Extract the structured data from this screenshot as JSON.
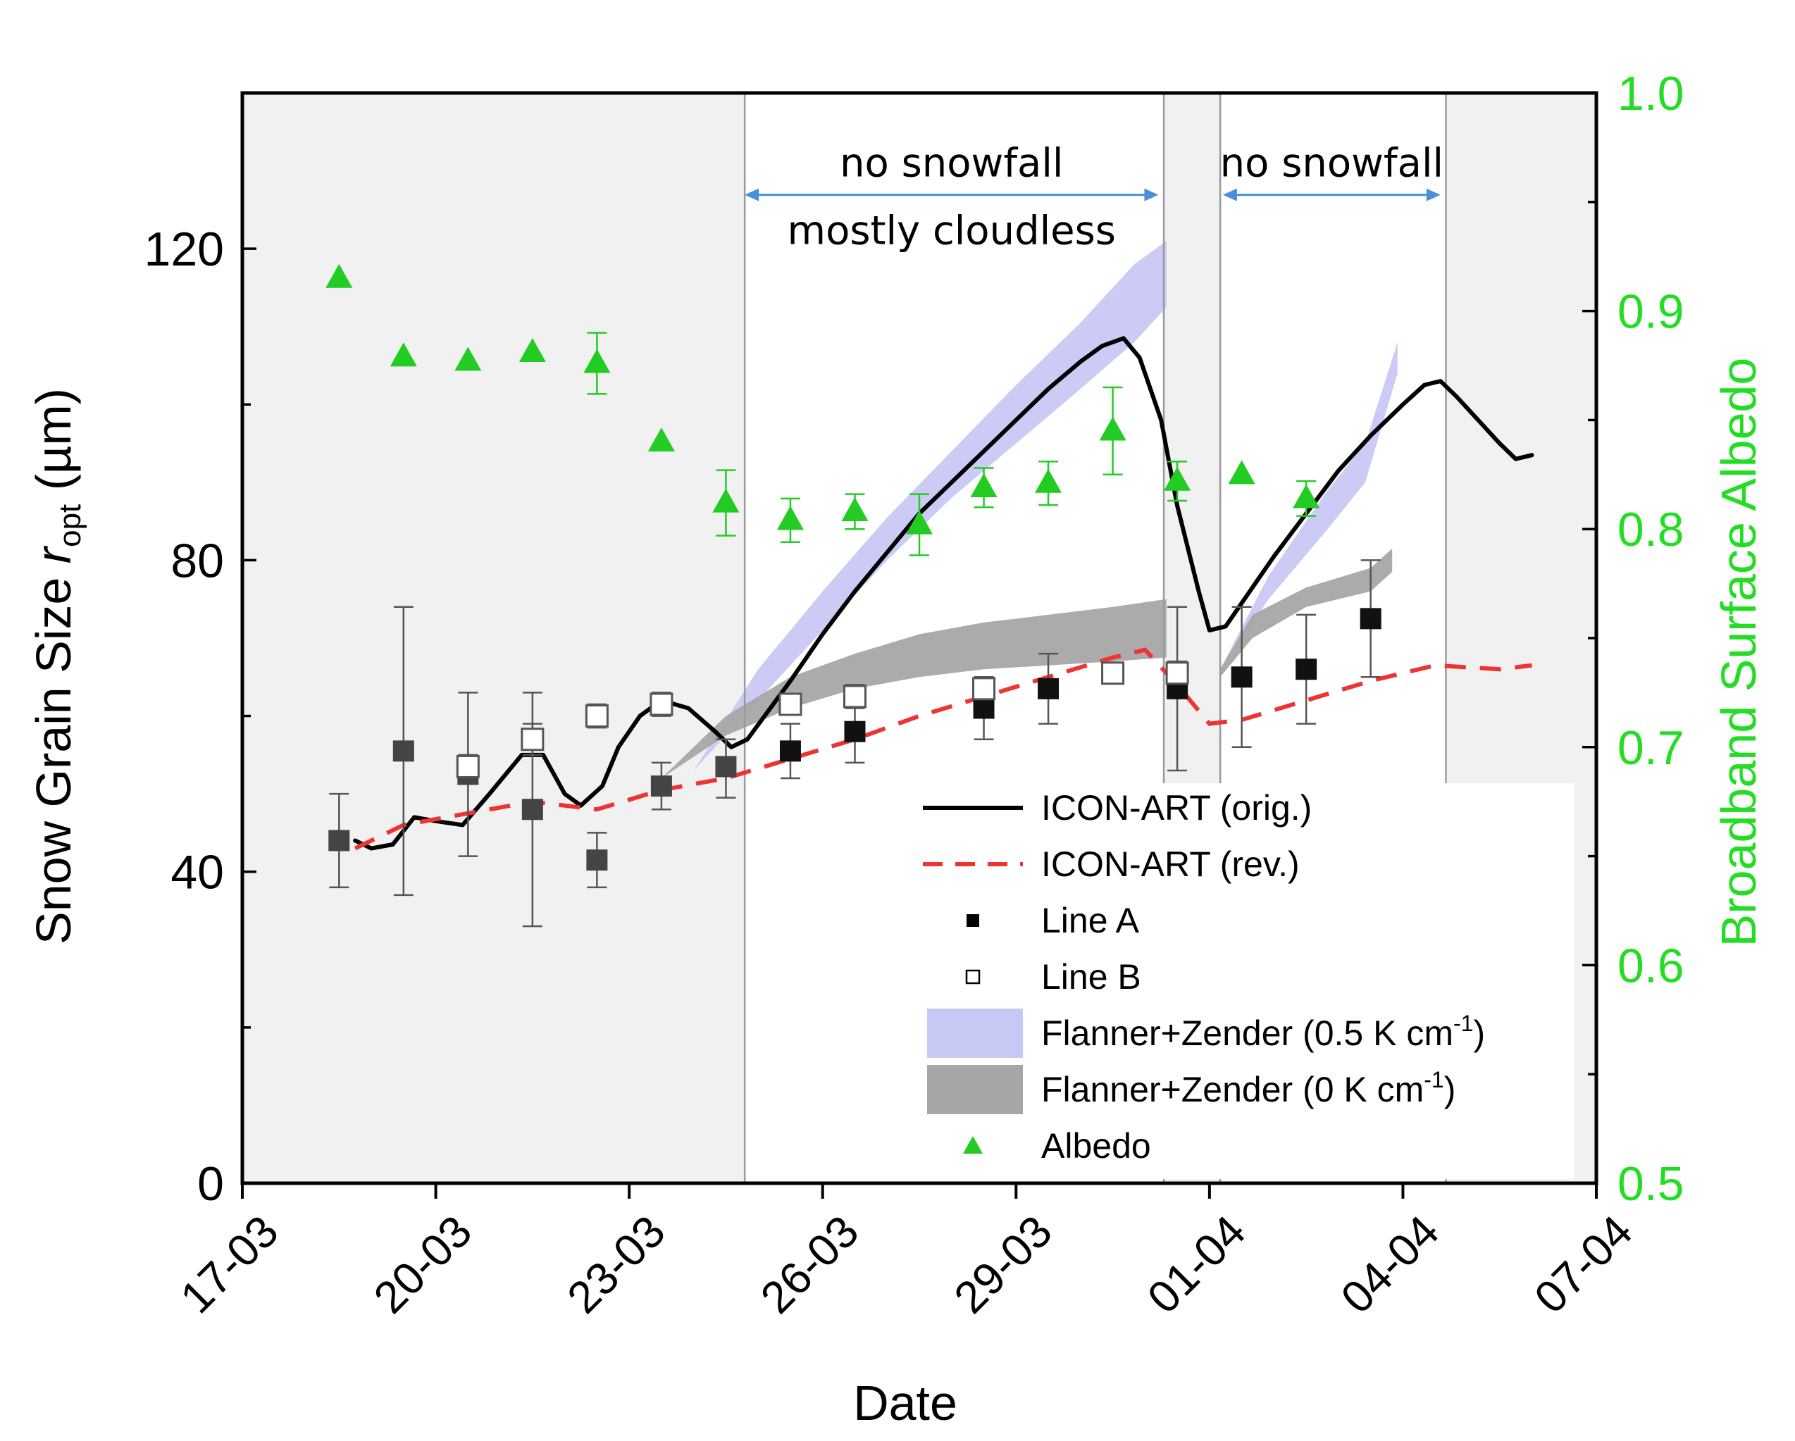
{
  "chart_data": {
    "type": "scatter",
    "xlabel": "Date",
    "ylabel": {
      "main": "Snow Grain Size ",
      "italic": "r",
      "sub": "opt",
      "unit": " (µm)"
    },
    "ylabel_right": "Broadband Surface Albedo",
    "x_range": [
      "2017-03-17",
      "2017-04-07"
    ],
    "y_left_range": [
      0,
      140
    ],
    "y_right_range": [
      0.5,
      1.0
    ],
    "x_ticks": [
      {
        "date": "2017-03-17",
        "label": "17-03"
      },
      {
        "date": "2017-03-20",
        "label": "20-03"
      },
      {
        "date": "2017-03-23",
        "label": "23-03"
      },
      {
        "date": "2017-03-26",
        "label": "26-03"
      },
      {
        "date": "2017-03-29",
        "label": "29-03"
      },
      {
        "date": "2017-04-01",
        "label": "01-04"
      },
      {
        "date": "2017-04-04",
        "label": "04-04"
      },
      {
        "date": "2017-04-07",
        "label": "07-04"
      }
    ],
    "y_left_ticks": [
      {
        "value": 0,
        "label": "0"
      },
      {
        "value": 40,
        "label": "40"
      },
      {
        "value": 80,
        "label": "80"
      },
      {
        "value": 120,
        "label": "120"
      }
    ],
    "y_right_ticks": [
      {
        "value": 0.5,
        "label": "0.5"
      },
      {
        "value": 0.6,
        "label": "0.6"
      },
      {
        "value": 0.7,
        "label": "0.7"
      },
      {
        "value": 0.8,
        "label": "0.8"
      },
      {
        "value": 0.9,
        "label": "0.9"
      },
      {
        "value": 1.0,
        "label": "1.0"
      }
    ],
    "shaded_periods": [
      {
        "start": "2017-03-17T00:00",
        "end": "2017-03-24T19:00"
      },
      {
        "start": "2017-03-31T07:00",
        "end": "2017-04-01T04:00"
      },
      {
        "start": "2017-04-04T16:00",
        "end": "2017-04-07T00:00"
      }
    ],
    "period_lines": [
      "2017-03-24T19:00",
      "2017-03-31T07:00",
      "2017-04-01T04:00",
      "2017-04-04T16:00"
    ],
    "annotations": [
      {
        "lines": [
          "no snowfall",
          "mostly cloudless"
        ],
        "start": "2017-03-24T19:00",
        "end": "2017-03-31T05:00",
        "y": 128
      },
      {
        "lines": [
          "no snowfall"
        ],
        "start": "2017-04-01T05:00",
        "end": "2017-04-04T14:00",
        "y": 128
      }
    ],
    "legend": [
      {
        "label": "ICON-ART (orig.)",
        "kind": "line",
        "color": "#000000"
      },
      {
        "label": "ICON-ART (rev.)",
        "kind": "dash",
        "color": "#ee3333"
      },
      {
        "label": "Line A",
        "kind": "square-filled",
        "color": "#000000"
      },
      {
        "label": "Line B",
        "kind": "square-open",
        "color": "#000000"
      },
      {
        "label": "Flanner+Zender (0.5 K cm",
        "sup": "-1",
        "tail": ")",
        "kind": "band",
        "color": "#c8c8f4"
      },
      {
        "label": "Flanner+Zender (0 K cm",
        "sup": "-1",
        "tail": ")",
        "kind": "band",
        "color": "#a6a6a6"
      },
      {
        "label": "Albedo",
        "kind": "triangle",
        "color": "#22cc22"
      }
    ],
    "series": [
      {
        "name": "ICON-ART (orig.)",
        "color": "#000000",
        "points": [
          [
            "2017-03-18T18:00",
            44
          ],
          [
            "2017-03-19T00:00",
            43
          ],
          [
            "2017-03-19T08:00",
            43.5
          ],
          [
            "2017-03-19T16:00",
            47
          ],
          [
            "2017-03-20T00:00",
            46.5
          ],
          [
            "2017-03-20T10:00",
            46
          ],
          [
            "2017-03-20T20:00",
            50
          ],
          [
            "2017-03-21T08:00",
            55
          ],
          [
            "2017-03-21T16:00",
            55
          ],
          [
            "2017-03-22T00:00",
            50
          ],
          [
            "2017-03-22T06:00",
            48.5
          ],
          [
            "2017-03-22T14:00",
            51
          ],
          [
            "2017-03-22T20:00",
            56
          ],
          [
            "2017-03-23T04:00",
            60
          ],
          [
            "2017-03-23T12:00",
            62
          ],
          [
            "2017-03-23T22:00",
            61
          ],
          [
            "2017-03-24T08:00",
            58
          ],
          [
            "2017-03-24T14:00",
            56
          ],
          [
            "2017-03-24T20:00",
            57
          ],
          [
            "2017-03-25T12:00",
            64.5
          ],
          [
            "2017-03-26T00:00",
            70.5
          ],
          [
            "2017-03-26T12:00",
            76
          ],
          [
            "2017-03-27T00:00",
            81
          ],
          [
            "2017-03-27T12:00",
            86
          ],
          [
            "2017-03-28T00:00",
            90
          ],
          [
            "2017-03-28T12:00",
            94
          ],
          [
            "2017-03-29T00:00",
            98
          ],
          [
            "2017-03-29T12:00",
            102
          ],
          [
            "2017-03-30T00:00",
            105.5
          ],
          [
            "2017-03-30T08:00",
            107.5
          ],
          [
            "2017-03-30T16:00",
            108.5
          ],
          [
            "2017-03-30T22:00",
            106
          ],
          [
            "2017-03-31T06:00",
            98
          ],
          [
            "2017-03-31T12:00",
            87
          ],
          [
            "2017-03-31T20:00",
            76
          ],
          [
            "2017-04-01T00:00",
            71
          ],
          [
            "2017-04-01T06:00",
            71.5
          ],
          [
            "2017-04-01T12:00",
            74.5
          ],
          [
            "2017-04-02T00:00",
            80.5
          ],
          [
            "2017-04-02T12:00",
            86
          ],
          [
            "2017-04-03T00:00",
            91.5
          ],
          [
            "2017-04-03T12:00",
            96
          ],
          [
            "2017-04-04T00:00",
            100
          ],
          [
            "2017-04-04T08:00",
            102.5
          ],
          [
            "2017-04-04T14:00",
            103
          ],
          [
            "2017-04-04T20:00",
            101
          ],
          [
            "2017-04-05T04:00",
            98
          ],
          [
            "2017-04-05T12:00",
            95
          ],
          [
            "2017-04-05T18:00",
            93
          ],
          [
            "2017-04-06T00:00",
            93.5
          ]
        ]
      },
      {
        "name": "ICON-ART (rev.)",
        "color": "#ee3333",
        "points": [
          [
            "2017-03-18T18:00",
            43
          ],
          [
            "2017-03-19T12:00",
            46
          ],
          [
            "2017-03-20T12:00",
            47.5
          ],
          [
            "2017-03-21T12:00",
            49
          ],
          [
            "2017-03-22T12:00",
            48
          ],
          [
            "2017-03-23T12:00",
            50.5
          ],
          [
            "2017-03-24T12:00",
            52
          ],
          [
            "2017-03-25T12:00",
            54.5
          ],
          [
            "2017-03-26T12:00",
            57
          ],
          [
            "2017-03-27T12:00",
            60
          ],
          [
            "2017-03-28T12:00",
            62.5
          ],
          [
            "2017-03-29T12:00",
            65
          ],
          [
            "2017-03-30T12:00",
            67.5
          ],
          [
            "2017-03-31T00:00",
            68.5
          ],
          [
            "2017-03-31T12:00",
            64
          ],
          [
            "2017-04-01T00:00",
            59
          ],
          [
            "2017-04-01T12:00",
            59.5
          ],
          [
            "2017-04-02T12:00",
            62
          ],
          [
            "2017-04-03T12:00",
            64.5
          ],
          [
            "2017-04-04T12:00",
            66.5
          ],
          [
            "2017-04-05T12:00",
            66
          ],
          [
            "2017-04-06T00:00",
            66.5
          ]
        ]
      },
      {
        "name": "Line A",
        "color": "#000000",
        "points": [
          {
            "x": "2017-03-18T12:00",
            "y": 44,
            "err": [
              38,
              50
            ]
          },
          {
            "x": "2017-03-19T12:00",
            "y": 55.5,
            "err": [
              37,
              74
            ]
          },
          {
            "x": "2017-03-20T12:00",
            "y": 52.5,
            "err": [
              42,
              63
            ]
          },
          {
            "x": "2017-03-21T12:00",
            "y": 48,
            "err": [
              33,
              63
            ]
          },
          {
            "x": "2017-03-22T12:00",
            "y": 41.5,
            "err": [
              38,
              45
            ]
          },
          {
            "x": "2017-03-23T12:00",
            "y": 51,
            "err": [
              48,
              54
            ]
          },
          {
            "x": "2017-03-24T12:00",
            "y": 53.5,
            "err": [
              49.5,
              57
            ]
          },
          {
            "x": "2017-03-25T12:00",
            "y": 55.5,
            "err": [
              52,
              59
            ]
          },
          {
            "x": "2017-03-26T12:00",
            "y": 58,
            "err": [
              54,
              62
            ]
          },
          {
            "x": "2017-03-28T12:00",
            "y": 61,
            "err": [
              57,
              65
            ]
          },
          {
            "x": "2017-03-29T12:00",
            "y": 63.5,
            "err": [
              59,
              68
            ]
          },
          {
            "x": "2017-03-31T12:00",
            "y": 63.5,
            "err": [
              53,
              74
            ]
          },
          {
            "x": "2017-04-01T12:00",
            "y": 65,
            "err": [
              56,
              74
            ]
          },
          {
            "x": "2017-04-02T12:00",
            "y": 66,
            "err": [
              59,
              73
            ]
          },
          {
            "x": "2017-04-03T12:00",
            "y": 72.5,
            "err": [
              65,
              80
            ]
          }
        ]
      },
      {
        "name": "Line B",
        "color": "#000000",
        "points": [
          {
            "x": "2017-03-20T12:00",
            "y": 53.5,
            "err": [
              52,
              55
            ]
          },
          {
            "x": "2017-03-21T12:00",
            "y": 57,
            "err": [
              55,
              59
            ]
          },
          {
            "x": "2017-03-22T12:00",
            "y": 60,
            "err": [
              58.5,
              61.5
            ]
          },
          {
            "x": "2017-03-23T12:00",
            "y": 61.5,
            "err": [
              60,
              63
            ]
          },
          {
            "x": "2017-03-25T12:00",
            "y": 61.5,
            "err": [
              60.5,
              62.5
            ]
          },
          {
            "x": "2017-03-26T12:00",
            "y": 62.5,
            "err": [
              61,
              64
            ]
          },
          {
            "x": "2017-03-28T12:00",
            "y": 63.5,
            "err": [
              62,
              65
            ]
          },
          {
            "x": "2017-03-30T12:00",
            "y": 65.5,
            "err": [
              64.5,
              66.5
            ]
          },
          {
            "x": "2017-03-31T12:00",
            "y": 65.5,
            "err": [
              64,
              67
            ]
          }
        ]
      },
      {
        "name": "Flanner+Zender (0.5 K cm-1)",
        "color": "#c8c8f4",
        "bands": [
          [
            [
              "2017-03-24T00:00",
              53,
              53
            ],
            [
              "2017-03-25T00:00",
              62,
              66
            ],
            [
              "2017-03-26T00:00",
              71,
              76
            ],
            [
              "2017-03-27T00:00",
              80,
              85.5
            ],
            [
              "2017-03-28T00:00",
              88,
              94
            ],
            [
              "2017-03-29T00:00",
              95,
              102.5
            ],
            [
              "2017-03-30T00:00",
              102,
              110.5
            ],
            [
              "2017-03-30T20:00",
              108,
              118
            ],
            [
              "2017-03-31T08:00",
              112.5,
              121
            ]
          ],
          [
            [
              "2017-04-01T04:00",
              66,
              66
            ],
            [
              "2017-04-01T22:00",
              75,
              78
            ],
            [
              "2017-04-02T20:00",
              84,
              89
            ],
            [
              "2017-04-03T10:00",
              90,
              95
            ],
            [
              "2017-04-03T22:00",
              104,
              108
            ]
          ]
        ]
      },
      {
        "name": "Flanner+Zender (0 K cm-1)",
        "color": "#a6a6a6",
        "bands": [
          [
            [
              "2017-03-23T12:00",
              52,
              52
            ],
            [
              "2017-03-24T12:00",
              57.5,
              60
            ],
            [
              "2017-03-25T12:00",
              61,
              65
            ],
            [
              "2017-03-26T12:00",
              63.5,
              68
            ],
            [
              "2017-03-27T12:00",
              65,
              70.5
            ],
            [
              "2017-03-28T12:00",
              66,
              72
            ],
            [
              "2017-03-29T12:00",
              66.5,
              73
            ],
            [
              "2017-03-30T12:00",
              67,
              74
            ],
            [
              "2017-03-31T08:00",
              67.5,
              75
            ]
          ],
          [
            [
              "2017-04-01T04:00",
              65,
              66
            ],
            [
              "2017-04-01T16:00",
              70,
              73
            ],
            [
              "2017-04-02T12:00",
              74,
              76.5
            ],
            [
              "2017-04-03T12:00",
              76,
              79
            ],
            [
              "2017-04-03T20:00",
              78.5,
              81.5
            ]
          ]
        ]
      },
      {
        "name": "Albedo",
        "color": "#22cc22",
        "points": [
          {
            "x": "2017-03-18T12:00",
            "y": 0.915
          },
          {
            "x": "2017-03-19T12:00",
            "y": 0.879
          },
          {
            "x": "2017-03-20T12:00",
            "y": 0.877
          },
          {
            "x": "2017-03-21T12:00",
            "y": 0.881
          },
          {
            "x": "2017-03-22T12:00",
            "y": 0.876,
            "err": [
              0.862,
              0.89
            ]
          },
          {
            "x": "2017-03-23T12:00",
            "y": 0.84
          },
          {
            "x": "2017-03-24T12:00",
            "y": 0.812,
            "err": [
              0.797,
              0.827
            ]
          },
          {
            "x": "2017-03-25T12:00",
            "y": 0.804,
            "err": [
              0.794,
              0.814
            ]
          },
          {
            "x": "2017-03-26T12:00",
            "y": 0.808,
            "err": [
              0.8,
              0.816
            ]
          },
          {
            "x": "2017-03-27T12:00",
            "y": 0.802,
            "err": [
              0.788,
              0.816
            ]
          },
          {
            "x": "2017-03-28T12:00",
            "y": 0.819,
            "err": [
              0.81,
              0.828
            ]
          },
          {
            "x": "2017-03-29T12:00",
            "y": 0.821,
            "err": [
              0.811,
              0.831
            ]
          },
          {
            "x": "2017-03-30T12:00",
            "y": 0.845,
            "err": [
              0.825,
              0.865
            ]
          },
          {
            "x": "2017-03-31T12:00",
            "y": 0.822,
            "err": [
              0.813,
              0.831
            ]
          },
          {
            "x": "2017-04-01T12:00",
            "y": 0.825
          },
          {
            "x": "2017-04-02T12:00",
            "y": 0.814,
            "err": [
              0.806,
              0.822
            ]
          }
        ]
      }
    ]
  }
}
